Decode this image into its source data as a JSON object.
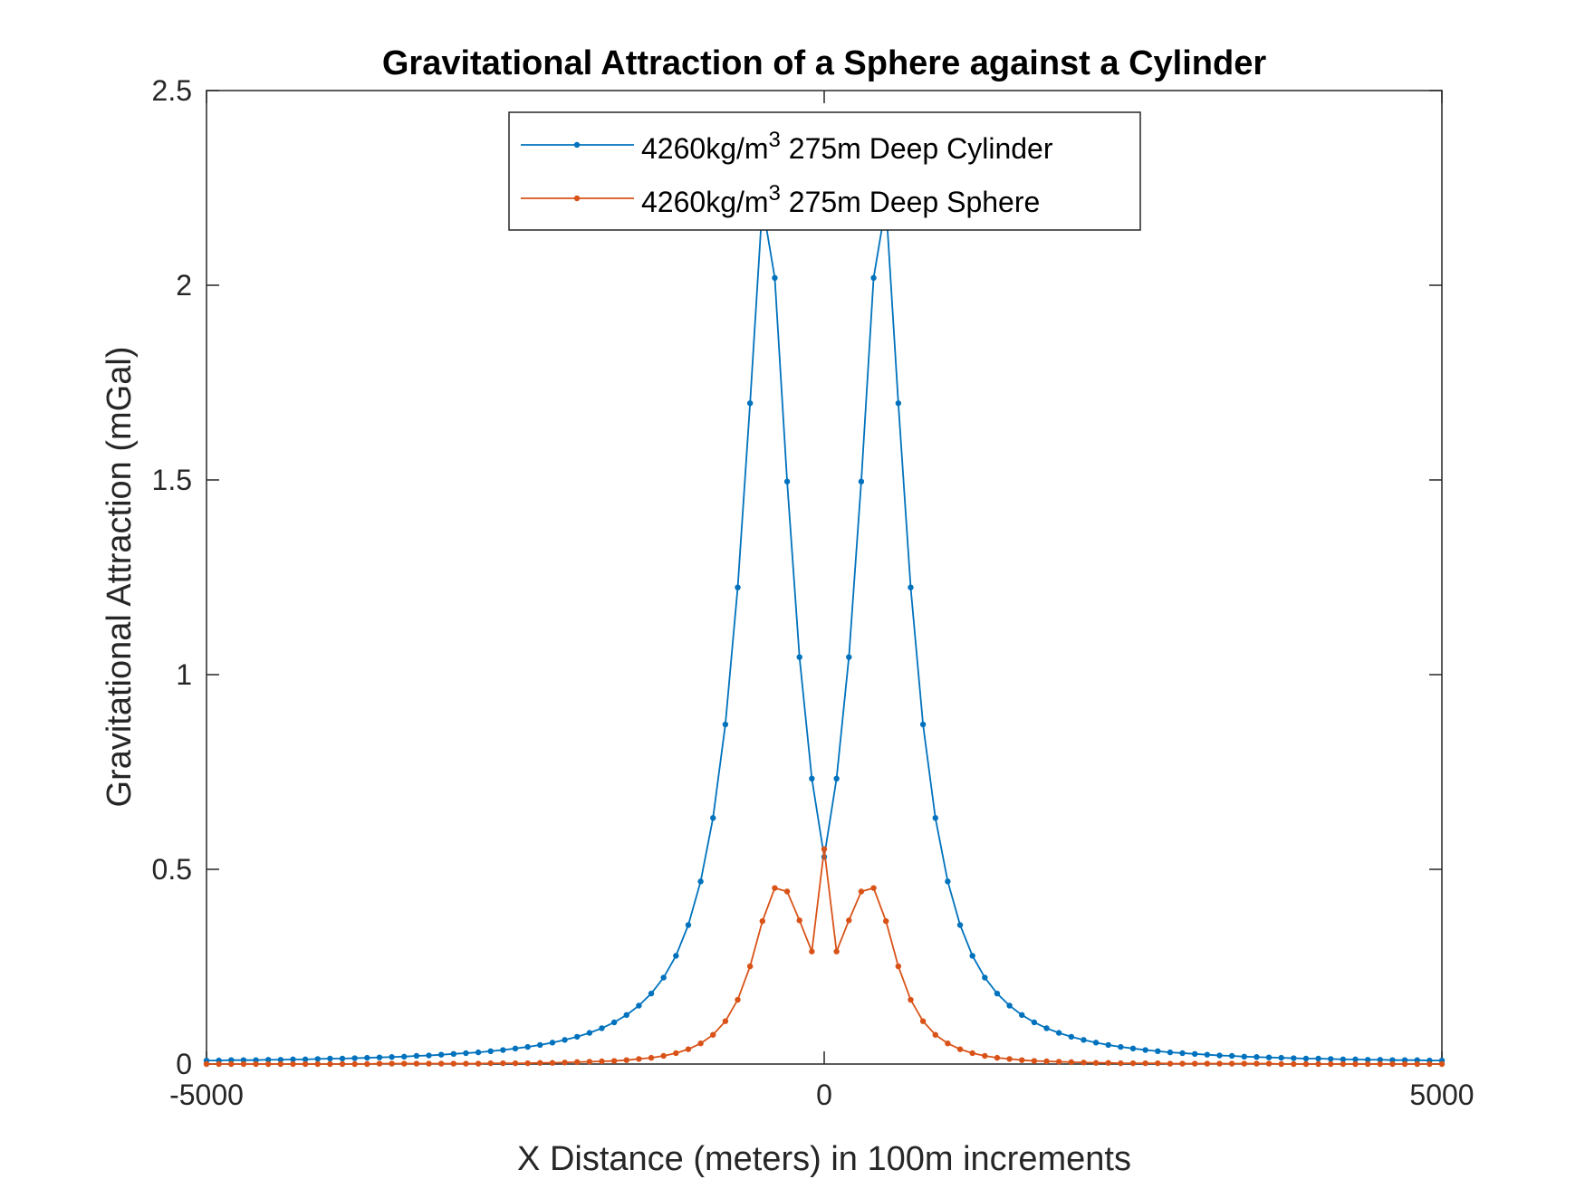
{
  "chart_data": {
    "type": "line",
    "title": "Gravitational Attraction of a Sphere against a Cylinder",
    "xlabel": "X Distance (meters) in 100m increments",
    "ylabel": "Gravitational Attraction (mGal)",
    "xlim": [
      -5000,
      5000
    ],
    "ylim": [
      0,
      2.5
    ],
    "xticks": [
      -5000,
      0,
      5000
    ],
    "xtick_labels": [
      "-5000",
      "0",
      "5000"
    ],
    "yticks": [
      0,
      0.5,
      1,
      1.5,
      2,
      2.5
    ],
    "ytick_labels": [
      "0",
      "0.5",
      "1",
      "1.5",
      "2",
      "2.5"
    ],
    "grid": false,
    "legend_position": "top-center",
    "x": [
      -5000,
      -4900,
      -4800,
      -4700,
      -4600,
      -4500,
      -4400,
      -4300,
      -4200,
      -4100,
      -4000,
      -3900,
      -3800,
      -3700,
      -3600,
      -3500,
      -3400,
      -3300,
      -3200,
      -3100,
      -3000,
      -2900,
      -2800,
      -2700,
      -2600,
      -2500,
      -2400,
      -2300,
      -2200,
      -2100,
      -2000,
      -1900,
      -1800,
      -1700,
      -1600,
      -1500,
      -1400,
      -1300,
      -1200,
      -1100,
      -1000,
      -900,
      -800,
      -700,
      -600,
      -500,
      -400,
      -300,
      -200,
      -100,
      0,
      100,
      200,
      300,
      400,
      500,
      600,
      700,
      800,
      900,
      1000,
      1100,
      1200,
      1300,
      1400,
      1500,
      1600,
      1700,
      1800,
      1900,
      2000,
      2100,
      2200,
      2300,
      2400,
      2500,
      2600,
      2700,
      2800,
      2900,
      3000,
      3100,
      3200,
      3300,
      3400,
      3500,
      3600,
      3700,
      3800,
      3900,
      4000,
      4100,
      4200,
      4300,
      4400,
      4500,
      4600,
      4700,
      4800,
      4900,
      5000
    ],
    "series": [
      {
        "name": "4260kg/m3 275m Deep Cylinder",
        "legend_base": "4260kg/m",
        "legend_sup": "3",
        "legend_rest": " 275m Deep Cylinder",
        "color": "#0072BD",
        "values": [
          0.009,
          0.009,
          0.01,
          0.01,
          0.01,
          0.011,
          0.011,
          0.012,
          0.012,
          0.013,
          0.014,
          0.014,
          0.015,
          0.016,
          0.017,
          0.018,
          0.019,
          0.021,
          0.022,
          0.024,
          0.026,
          0.028,
          0.03,
          0.033,
          0.036,
          0.04,
          0.044,
          0.049,
          0.055,
          0.062,
          0.07,
          0.08,
          0.092,
          0.107,
          0.126,
          0.15,
          0.181,
          0.222,
          0.278,
          0.357,
          0.469,
          0.632,
          0.872,
          1.224,
          1.697,
          2.208,
          2.019,
          1.496,
          1.045,
          0.733,
          0.532,
          0.733,
          1.045,
          1.496,
          2.019,
          2.208,
          1.697,
          1.224,
          0.872,
          0.632,
          0.469,
          0.357,
          0.278,
          0.222,
          0.181,
          0.15,
          0.126,
          0.107,
          0.092,
          0.08,
          0.07,
          0.062,
          0.055,
          0.049,
          0.044,
          0.04,
          0.036,
          0.033,
          0.03,
          0.028,
          0.026,
          0.024,
          0.022,
          0.021,
          0.019,
          0.018,
          0.017,
          0.016,
          0.015,
          0.014,
          0.014,
          0.013,
          0.012,
          0.012,
          0.011,
          0.011,
          0.01,
          0.01,
          0.01,
          0.009,
          0.009
        ]
      },
      {
        "name": "4260kg/m3 275m Deep Sphere",
        "legend_base": "4260kg/m",
        "legend_sup": "3",
        "legend_rest": " 275m Deep Sphere",
        "color": "#D95319",
        "values": [
          0.0,
          0.0,
          0.0,
          0.0,
          0.0,
          0.0,
          0.0,
          0.0,
          0.0,
          0.0,
          0.0,
          0.0,
          0.0,
          0.0,
          0.001,
          0.001,
          0.001,
          0.001,
          0.001,
          0.001,
          0.001,
          0.001,
          0.001,
          0.002,
          0.002,
          0.002,
          0.002,
          0.003,
          0.003,
          0.004,
          0.005,
          0.006,
          0.007,
          0.008,
          0.01,
          0.013,
          0.016,
          0.021,
          0.028,
          0.038,
          0.053,
          0.075,
          0.11,
          0.165,
          0.251,
          0.367,
          0.452,
          0.443,
          0.369,
          0.289,
          0.552,
          0.289,
          0.369,
          0.443,
          0.452,
          0.367,
          0.251,
          0.165,
          0.11,
          0.075,
          0.053,
          0.038,
          0.028,
          0.021,
          0.016,
          0.013,
          0.01,
          0.008,
          0.007,
          0.006,
          0.005,
          0.004,
          0.003,
          0.003,
          0.002,
          0.002,
          0.002,
          0.002,
          0.001,
          0.001,
          0.001,
          0.001,
          0.001,
          0.001,
          0.001,
          0.001,
          0.001,
          0.0,
          0.0,
          0.0,
          0.0,
          0.0,
          0.0,
          0.0,
          0.0,
          0.0,
          0.0,
          0.0,
          0.0,
          0.0,
          0.0
        ]
      }
    ]
  }
}
